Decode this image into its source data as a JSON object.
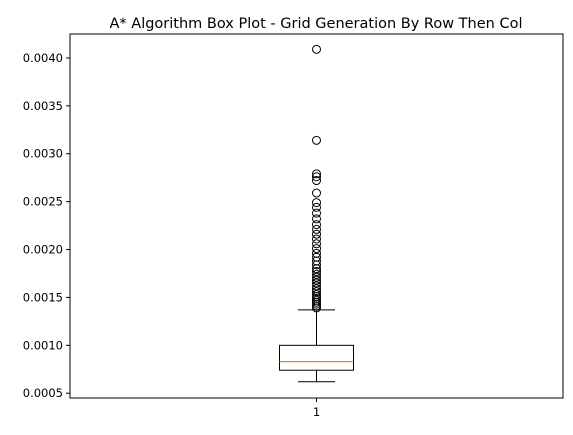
{
  "chart_data": {
    "type": "boxplot",
    "title": "A* Algorithm Box Plot - Grid Generation By Row Then Col",
    "xlabel": "",
    "ylabel": "",
    "categories": [
      "1"
    ],
    "ylim": [
      0.00045,
      0.00425
    ],
    "yticks": [
      0.0005,
      0.001,
      0.0015,
      0.002,
      0.0025,
      0.003,
      0.0035,
      0.004
    ],
    "ytick_labels": [
      "0.0005",
      "0.0010",
      "0.0015",
      "0.0020",
      "0.0025",
      "0.0030",
      "0.0035",
      "0.0040"
    ],
    "grid": false,
    "colors": {
      "box": "#000000",
      "median": "#ff7f0e",
      "flier": "#000000"
    },
    "boxes": [
      {
        "label": "1",
        "whisker_low": 0.00062,
        "q1": 0.00074,
        "median": 0.00083,
        "q3": 0.001,
        "whisker_high": 0.00137,
        "fliers": [
          0.00139,
          0.00141,
          0.00143,
          0.00145,
          0.00147,
          0.00149,
          0.00151,
          0.00153,
          0.00156,
          0.00159,
          0.00162,
          0.00165,
          0.00168,
          0.00171,
          0.00174,
          0.00177,
          0.0018,
          0.00184,
          0.00188,
          0.00192,
          0.00196,
          0.00201,
          0.00206,
          0.00211,
          0.00216,
          0.00221,
          0.00226,
          0.00232,
          0.00238,
          0.00244,
          0.00249,
          0.00259,
          0.00272,
          0.00276,
          0.00279,
          0.00314,
          0.00409
        ]
      }
    ]
  }
}
